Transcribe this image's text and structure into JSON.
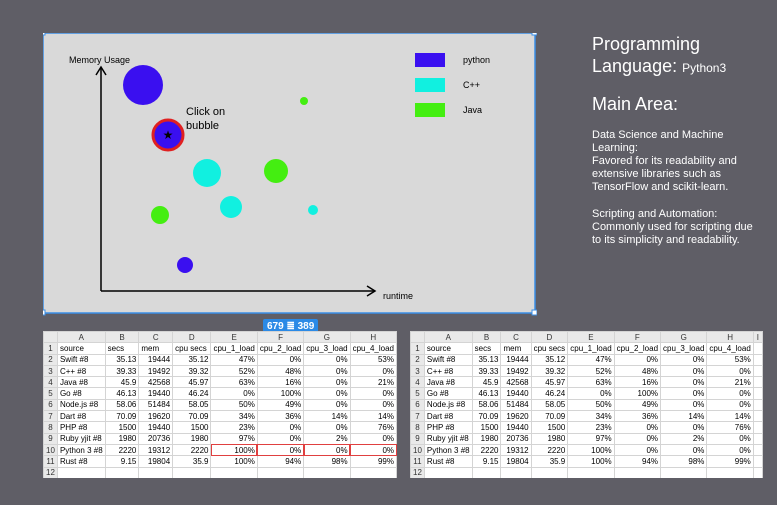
{
  "canvas": {
    "y_label": "Memory Usage",
    "x_label": "runtime",
    "annotation": [
      "Click on",
      "bubble"
    ],
    "legend": [
      "python",
      "C++",
      "Java"
    ]
  },
  "badge": {
    "width": "679",
    "height": "389"
  },
  "side_panel": {
    "title": "Programming",
    "title_2": "Language:",
    "language": "Python3",
    "section": "Main Area:",
    "paragraphs": [
      [
        "Data Science and Machine",
        "Learning:",
        "Favored for its readability and",
        "extensive libraries such as",
        "TensorFlow and scikit-learn."
      ],
      [
        "Scripting and Automation:",
        "Commonly used for scripting due",
        "to its simplicity and readability."
      ]
    ]
  },
  "spreadsheet": {
    "columns": [
      "A",
      "B",
      "C",
      "D",
      "E",
      "F",
      "G",
      "H",
      "I"
    ],
    "row_numbers": [
      "1",
      "2",
      "3",
      "4",
      "5",
      "6",
      "7",
      "8",
      "9",
      "10",
      "11",
      "12"
    ],
    "rows": [
      [
        "source",
        "secs",
        "mem",
        "cpu secs",
        "cpu_1_load",
        "cpu_2_load",
        "cpu_3_load",
        "cpu_4_load"
      ],
      [
        "Swift #8",
        "35.13",
        "19444",
        "35.12",
        "47%",
        "0%",
        "0%",
        "53%"
      ],
      [
        "C++ #8",
        "39.33",
        "19492",
        "39.32",
        "52%",
        "48%",
        "0%",
        "0%"
      ],
      [
        "Java #8",
        "45.9",
        "42568",
        "45.97",
        "63%",
        "16%",
        "0%",
        "21%"
      ],
      [
        "Go #8",
        "46.13",
        "19440",
        "46.24",
        "0%",
        "100%",
        "0%",
        "0%"
      ],
      [
        "Node.js #8",
        "58.06",
        "51484",
        "58.05",
        "50%",
        "49%",
        "0%",
        "0%"
      ],
      [
        "Dart #8",
        "70.09",
        "19620",
        "70.09",
        "34%",
        "36%",
        "14%",
        "14%"
      ],
      [
        "PHP #8",
        "1500",
        "19440",
        "1500",
        "23%",
        "0%",
        "0%",
        "76%"
      ],
      [
        "Ruby yjit #8",
        "1980",
        "20736",
        "1980",
        "97%",
        "0%",
        "2%",
        "0%"
      ],
      [
        "Python 3 #8",
        "2220",
        "19312",
        "2220",
        "100%",
        "0%",
        "0%",
        "0%"
      ],
      [
        "Rust #8",
        "9.15",
        "19804",
        "35.9",
        "100%",
        "94%",
        "98%",
        "99%"
      ]
    ]
  }
}
